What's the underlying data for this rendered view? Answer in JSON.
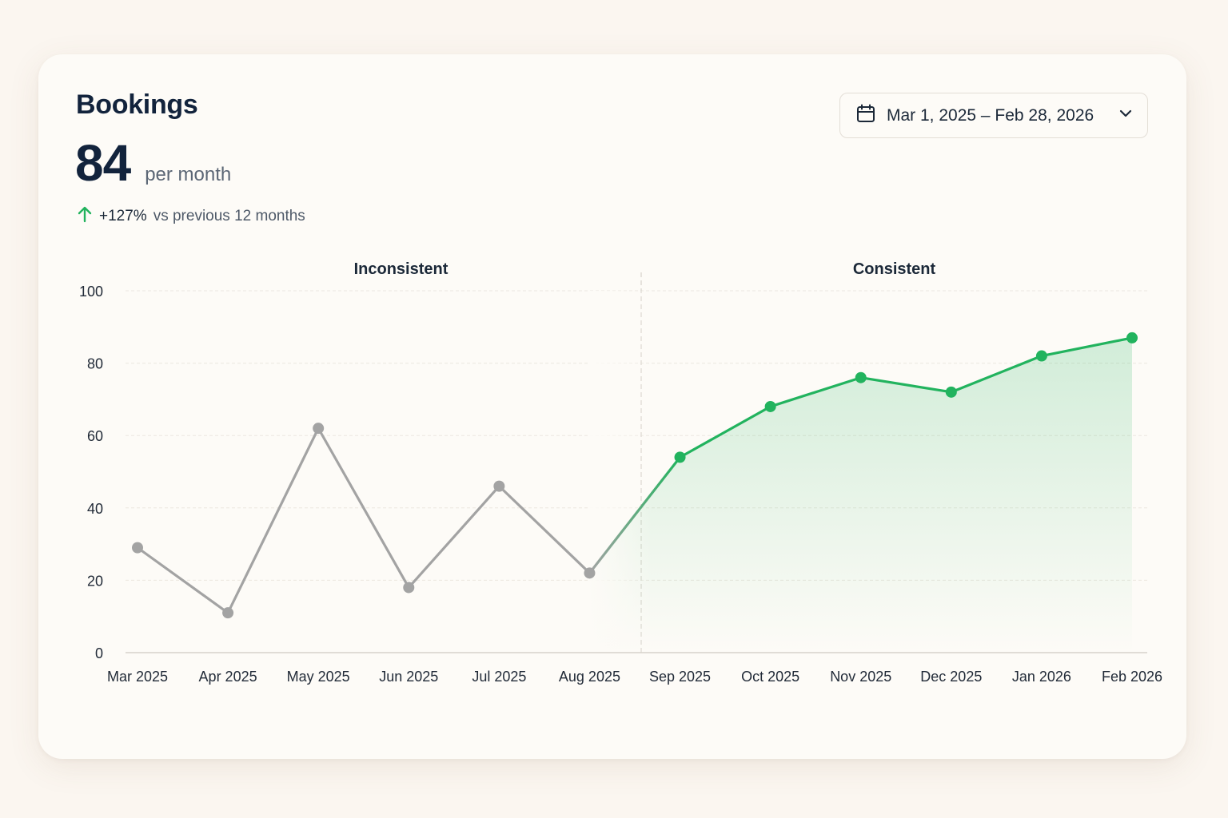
{
  "card": {
    "title": "Bookings",
    "value": "84",
    "unit": "per month",
    "change_pct": "+127%",
    "change_text": "vs previous 12 months"
  },
  "date_range": {
    "label": "Mar 1, 2025 – Feb 28, 2026",
    "icon": "calendar-icon",
    "chevron": "chevron-down-icon"
  },
  "colors": {
    "accent_green": "#22b35e",
    "muted_gray": "#a3a3a3",
    "title_navy": "#12233c"
  },
  "chart_data": {
    "type": "line",
    "title": "",
    "xlabel": "",
    "ylabel": "",
    "ylim": [
      0,
      100
    ],
    "yticks": [
      0,
      20,
      40,
      60,
      80,
      100
    ],
    "grid": true,
    "categories": [
      "Mar 2025",
      "Apr 2025",
      "May 2025",
      "Jun 2025",
      "Jul 2025",
      "Aug 2025",
      "Sep 2025",
      "Oct 2025",
      "Nov 2025",
      "Dec 2025",
      "Jan 2026",
      "Feb 2026"
    ],
    "values": [
      29,
      11,
      62,
      18,
      46,
      22,
      54,
      68,
      76,
      72,
      82,
      87
    ],
    "segments": [
      {
        "label": "Inconsistent",
        "from": "Mar 2025",
        "to": "Aug 2025",
        "color": "#a3a3a3"
      },
      {
        "label": "Consistent",
        "from": "Sep 2025",
        "to": "Feb 2026",
        "color": "#22b35e"
      }
    ]
  }
}
